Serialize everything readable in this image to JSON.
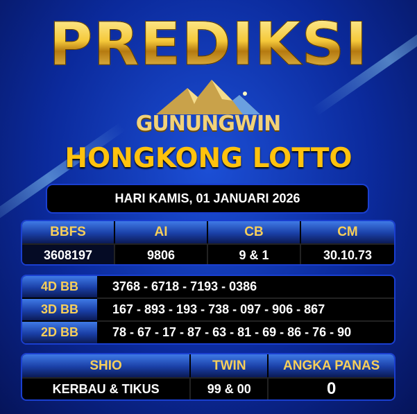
{
  "title": "PREDIKSI",
  "logo": {
    "text": "GUNUNGWIN",
    "icon": "mountain-logo-icon"
  },
  "subtitle": "HONGKONG LOTTO",
  "date": "HARI KAMIS, 01 JANUARI 2026",
  "main_table": {
    "headers": [
      "BBFS",
      "AI",
      "CB",
      "CM"
    ],
    "values": [
      "3608197",
      "9806",
      "9 & 1",
      "30.10.73"
    ]
  },
  "bb_table": [
    {
      "label": "4D BB",
      "value": "3768 - 6718 - 7193 - 0386"
    },
    {
      "label": "3D BB",
      "value": "167 - 893 - 193 - 738 - 097 - 906 - 867"
    },
    {
      "label": "2D BB",
      "value": "78 - 67 - 17 - 87 - 63 - 81 - 69 - 86 - 76 - 90"
    }
  ],
  "extra_table": {
    "headers": [
      "SHIO",
      "TWIN",
      "ANGKA PANAS"
    ],
    "values": [
      "KERBAU & TIKUS",
      "99 & 00",
      "0"
    ]
  },
  "colors": {
    "accent_gold": "#ffc20e",
    "header_blue": "#1a3fa6",
    "background": "#0b2a9c"
  }
}
